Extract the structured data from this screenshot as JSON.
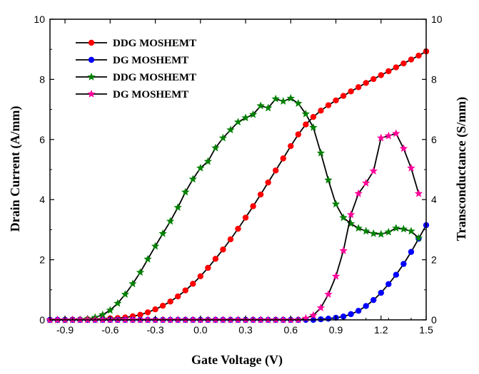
{
  "chart_data": {
    "type": "line",
    "xlabel": "Gate Voltage (V)",
    "ylabel": "Drain Current (A/mm)",
    "y2label": "Transconductance (S/mm)",
    "xlim": [
      -1.0,
      1.5
    ],
    "ylim": [
      0,
      10
    ],
    "y2lim": [
      0,
      10
    ],
    "xticks": [
      -0.9,
      -0.6,
      -0.3,
      0.0,
      0.3,
      0.6,
      0.9,
      1.2,
      1.5
    ],
    "xtick_labels": [
      "-0.9",
      "-0.6",
      "-0.3",
      "0.0",
      "0.3",
      "0.6",
      "0.9",
      "1.2",
      "1.5"
    ],
    "yticks": [
      0,
      2,
      4,
      6,
      8,
      10
    ],
    "ytick_labels": [
      "0",
      "2",
      "4",
      "6",
      "8",
      "10"
    ],
    "y2ticks": [
      0,
      2,
      4,
      6,
      8,
      10
    ],
    "y2tick_labels": [
      "0",
      "2",
      "4",
      "6",
      "8",
      "10"
    ],
    "legend_position": "top-left",
    "series": [
      {
        "name": "DDG MOSHEMT",
        "quantity": "drain current",
        "axis": "left",
        "color": "#ff0000",
        "marker": "circle",
        "x": [
          -1.0,
          -0.95,
          -0.9,
          -0.85,
          -0.8,
          -0.75,
          -0.7,
          -0.65,
          -0.6,
          -0.55,
          -0.5,
          -0.45,
          -0.4,
          -0.35,
          -0.3,
          -0.25,
          -0.2,
          -0.15,
          -0.1,
          -0.05,
          0.0,
          0.05,
          0.1,
          0.15,
          0.2,
          0.25,
          0.3,
          0.35,
          0.4,
          0.45,
          0.5,
          0.55,
          0.6,
          0.65,
          0.7,
          0.75,
          0.8,
          0.85,
          0.9,
          0.95,
          1.0,
          1.05,
          1.1,
          1.15,
          1.2,
          1.25,
          1.3,
          1.35,
          1.4,
          1.45,
          1.5
        ],
        "y": [
          0.0,
          0.0,
          0.0,
          0.01,
          0.01,
          0.02,
          0.03,
          0.04,
          0.05,
          0.06,
          0.08,
          0.12,
          0.17,
          0.25,
          0.35,
          0.47,
          0.61,
          0.78,
          0.98,
          1.2,
          1.45,
          1.73,
          2.03,
          2.34,
          2.68,
          3.03,
          3.4,
          3.78,
          4.17,
          4.57,
          4.97,
          5.37,
          5.78,
          6.17,
          6.5,
          6.75,
          6.96,
          7.14,
          7.3,
          7.45,
          7.6,
          7.74,
          7.88,
          8.01,
          8.14,
          8.27,
          8.4,
          8.53,
          8.66,
          8.79,
          8.93
        ]
      },
      {
        "name": "DG MOSHEMT",
        "quantity": "drain current",
        "axis": "left",
        "color": "#0000ff",
        "marker": "circle",
        "x": [
          -1.0,
          -0.95,
          -0.9,
          -0.85,
          -0.8,
          -0.75,
          -0.7,
          -0.65,
          -0.6,
          -0.55,
          -0.5,
          -0.45,
          -0.4,
          -0.35,
          -0.3,
          -0.25,
          -0.2,
          -0.15,
          -0.1,
          -0.05,
          0.0,
          0.05,
          0.1,
          0.15,
          0.2,
          0.25,
          0.3,
          0.35,
          0.4,
          0.45,
          0.5,
          0.55,
          0.6,
          0.65,
          0.7,
          0.75,
          0.8,
          0.85,
          0.9,
          0.95,
          1.0,
          1.05,
          1.1,
          1.15,
          1.2,
          1.25,
          1.3,
          1.35,
          1.4,
          1.45,
          1.5
        ],
        "y": [
          0.0,
          0.0,
          0.0,
          0.0,
          0.0,
          0.0,
          0.0,
          0.0,
          0.0,
          0.0,
          0.0,
          0.0,
          0.0,
          0.0,
          0.0,
          0.0,
          0.0,
          0.0,
          0.0,
          0.0,
          0.0,
          0.0,
          0.0,
          0.0,
          0.0,
          0.0,
          0.0,
          0.0,
          0.0,
          0.0,
          0.0,
          0.0,
          0.0,
          0.0,
          0.0,
          0.0,
          0.02,
          0.04,
          0.07,
          0.11,
          0.19,
          0.3,
          0.46,
          0.66,
          0.9,
          1.19,
          1.5,
          1.86,
          2.26,
          2.7,
          3.15
        ]
      },
      {
        "name": "DDG MOSHEMT",
        "quantity": "transconductance",
        "axis": "right",
        "color": "#008000",
        "marker": "star",
        "x": [
          -1.0,
          -0.95,
          -0.9,
          -0.85,
          -0.8,
          -0.75,
          -0.7,
          -0.65,
          -0.6,
          -0.55,
          -0.5,
          -0.45,
          -0.4,
          -0.35,
          -0.3,
          -0.25,
          -0.2,
          -0.15,
          -0.1,
          -0.05,
          0.0,
          0.05,
          0.1,
          0.15,
          0.2,
          0.25,
          0.3,
          0.35,
          0.4,
          0.45,
          0.5,
          0.55,
          0.6,
          0.65,
          0.7,
          0.75,
          0.8,
          0.85,
          0.9,
          0.95,
          1.0,
          1.05,
          1.1,
          1.15,
          1.2,
          1.25,
          1.3,
          1.35,
          1.4,
          1.45
        ],
        "y": [
          0.0,
          0.0,
          0.0,
          0.0,
          0.01,
          0.03,
          0.08,
          0.17,
          0.32,
          0.55,
          0.85,
          1.2,
          1.58,
          2.02,
          2.45,
          2.87,
          3.28,
          3.74,
          4.25,
          4.68,
          5.05,
          5.27,
          5.72,
          6.05,
          6.32,
          6.58,
          6.72,
          6.83,
          7.12,
          7.05,
          7.35,
          7.27,
          7.37,
          7.2,
          6.85,
          6.4,
          5.55,
          4.65,
          3.85,
          3.4,
          3.2,
          3.05,
          2.95,
          2.87,
          2.85,
          2.92,
          3.05,
          3.02,
          2.95,
          2.72
        ]
      },
      {
        "name": "DG MOSHEMT",
        "quantity": "transconductance",
        "axis": "right",
        "color": "#ff0099",
        "marker": "star",
        "x": [
          -1.0,
          -0.95,
          -0.9,
          -0.85,
          -0.8,
          -0.75,
          -0.7,
          -0.65,
          -0.6,
          -0.55,
          -0.5,
          -0.45,
          -0.4,
          -0.35,
          -0.3,
          -0.25,
          -0.2,
          -0.15,
          -0.1,
          -0.05,
          0.0,
          0.05,
          0.1,
          0.15,
          0.2,
          0.25,
          0.3,
          0.35,
          0.4,
          0.45,
          0.5,
          0.55,
          0.6,
          0.65,
          0.7,
          0.75,
          0.8,
          0.85,
          0.9,
          0.95,
          1.0,
          1.05,
          1.1,
          1.15,
          1.2,
          1.25,
          1.3,
          1.35,
          1.4,
          1.45
        ],
        "y": [
          0.0,
          0.0,
          0.0,
          0.0,
          0.0,
          0.0,
          0.0,
          0.0,
          0.0,
          0.0,
          0.0,
          0.0,
          0.0,
          0.0,
          0.0,
          0.0,
          0.0,
          0.0,
          0.0,
          0.0,
          0.0,
          0.0,
          0.0,
          0.0,
          0.0,
          0.0,
          0.0,
          0.0,
          0.0,
          0.0,
          0.0,
          0.0,
          0.0,
          0.0,
          0.05,
          0.15,
          0.4,
          0.85,
          1.45,
          2.3,
          3.5,
          4.2,
          4.55,
          4.95,
          6.05,
          6.12,
          6.2,
          5.7,
          5.05,
          4.2
        ]
      }
    ]
  }
}
